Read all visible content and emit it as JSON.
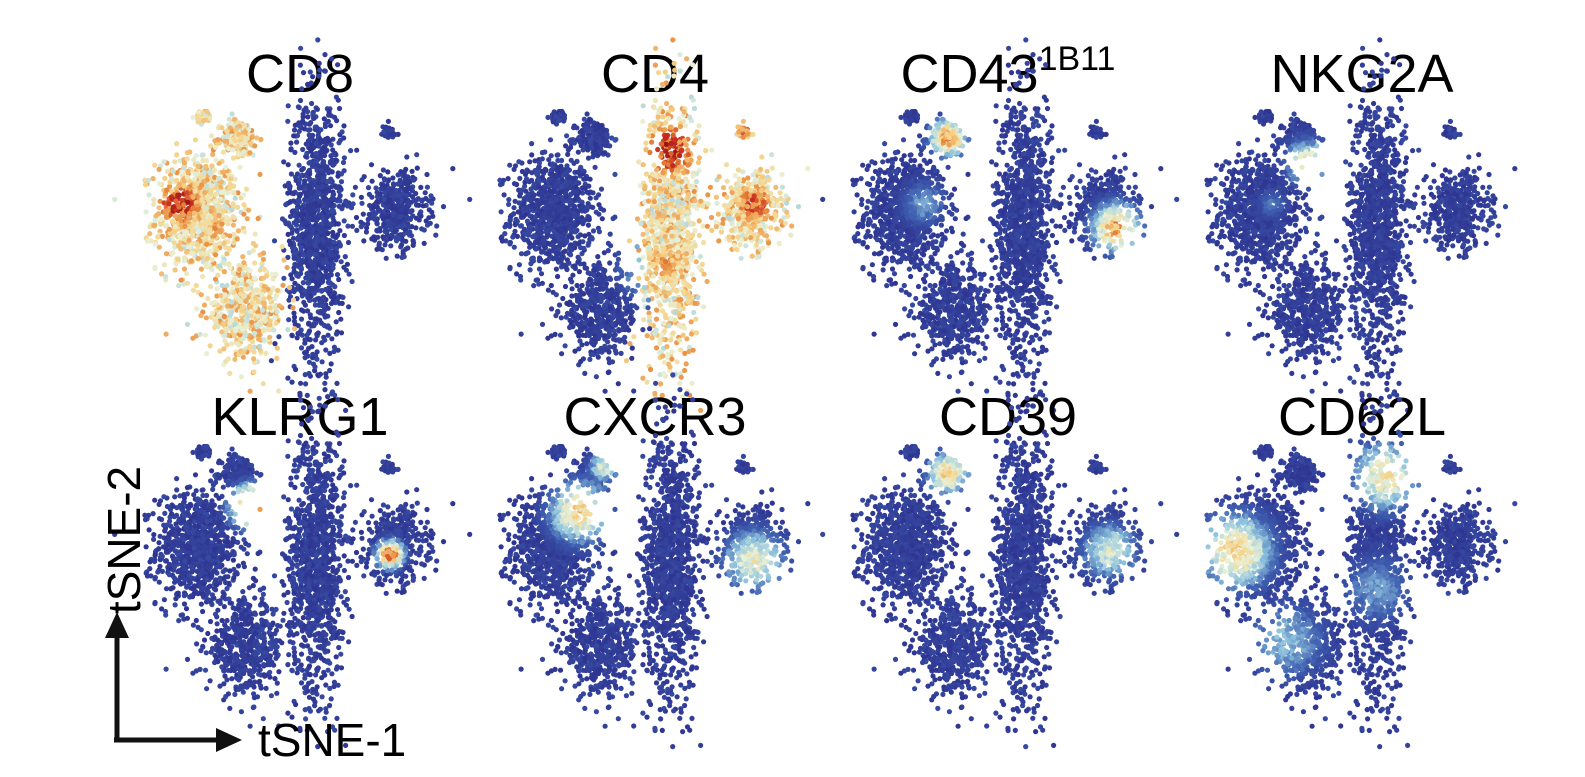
{
  "chart_data": {
    "type": "scatter",
    "layout": "small-multiples",
    "xlabel": "tSNE-1",
    "ylabel": "tSNE-2",
    "colormap": [
      "#2b2d8c",
      "#3f5fb0",
      "#8ec3dd",
      "#e8f1d8",
      "#f5d38a",
      "#e8883c",
      "#c72d20",
      "#9a1414"
    ],
    "background_color": "#2b2d8c",
    "clusters": [
      {
        "id": "cd8",
        "center": [
          -3.4,
          0.9
        ],
        "spread": [
          1.25,
          1.75
        ]
      },
      {
        "id": "cd8-top",
        "center": [
          -2.0,
          3.4
        ],
        "spread": [
          0.55,
          0.55
        ]
      },
      {
        "id": "cd8-small",
        "center": [
          -3.2,
          4.1
        ],
        "spread": [
          0.25,
          0.2
        ]
      },
      {
        "id": "cd4-main",
        "center": [
          0.55,
          0.5
        ],
        "spread": [
          0.85,
          3.9
        ]
      },
      {
        "id": "cd4-right",
        "center": [
          3.2,
          1.0
        ],
        "spread": [
          0.95,
          1.15
        ]
      },
      {
        "id": "cd4-small",
        "center": [
          2.9,
          3.6
        ],
        "spread": [
          0.3,
          0.25
        ]
      },
      {
        "id": "cd8-lower",
        "center": [
          -1.8,
          -2.4
        ],
        "spread": [
          1.2,
          1.4
        ]
      }
    ],
    "panels": [
      {
        "title": "CD8",
        "title_sup": "",
        "high": [
          {
            "x": -4.0,
            "y": 1.2,
            "r": 1.1,
            "v": 0.95
          },
          {
            "x": -2.6,
            "y": 0.3,
            "r": 1.0,
            "v": 0.7
          },
          {
            "x": -2.0,
            "y": 3.3,
            "r": 0.6,
            "v": 0.6
          },
          {
            "x": -3.0,
            "y": -2.6,
            "r": 0.9,
            "v": 0.5
          },
          {
            "x": -1.4,
            "y": -1.6,
            "r": 0.7,
            "v": 0.55
          }
        ],
        "high_clusters": [
          "cd8",
          "cd8-top",
          "cd8-small",
          "cd8-lower"
        ]
      },
      {
        "title": "CD4",
        "title_sup": "",
        "high": [
          {
            "x": 0.5,
            "y": 3.0,
            "r": 1.3,
            "v": 0.95
          },
          {
            "x": 0.4,
            "y": -0.8,
            "r": 1.2,
            "v": 0.7
          },
          {
            "x": 3.3,
            "y": 1.2,
            "r": 1.0,
            "v": 0.85
          },
          {
            "x": 3.0,
            "y": 3.6,
            "r": 0.4,
            "v": 0.8
          }
        ],
        "high_clusters": [
          "cd4-main",
          "cd4-right",
          "cd4-small"
        ]
      },
      {
        "title": "CD43",
        "title_sup": "1B11",
        "high": [
          {
            "x": -2.0,
            "y": 3.4,
            "r": 0.6,
            "v": 0.75
          },
          {
            "x": 3.6,
            "y": 0.4,
            "r": 0.8,
            "v": 0.7
          },
          {
            "x": -2.8,
            "y": 1.2,
            "r": 0.8,
            "v": 0.25
          }
        ],
        "high_clusters": []
      },
      {
        "title": "NKG2A",
        "title_sup": "",
        "high": [
          {
            "x": -1.8,
            "y": 2.6,
            "r": 0.7,
            "v": 0.55
          },
          {
            "x": -3.0,
            "y": 1.2,
            "r": 0.5,
            "v": 0.2
          }
        ],
        "high_clusters": []
      },
      {
        "title": "KLRG1",
        "title_sup": "",
        "high": [
          {
            "x": -1.6,
            "y": 2.3,
            "r": 0.7,
            "v": 0.85
          },
          {
            "x": 3.0,
            "y": 0.7,
            "r": 0.45,
            "v": 0.85
          }
        ],
        "high_clusters": []
      },
      {
        "title": "CXCR3",
        "title_sup": "",
        "high": [
          {
            "x": -2.5,
            "y": 2.1,
            "r": 1.0,
            "v": 0.6
          },
          {
            "x": 3.3,
            "y": 0.5,
            "r": 1.0,
            "v": 0.5
          },
          {
            "x": -1.7,
            "y": 3.6,
            "r": 0.5,
            "v": 0.45
          }
        ],
        "high_clusters": []
      },
      {
        "title": "CD39",
        "title_sup": "",
        "high": [
          {
            "x": -2.0,
            "y": 3.4,
            "r": 0.7,
            "v": 0.6
          },
          {
            "x": 3.4,
            "y": 0.8,
            "r": 0.9,
            "v": 0.45
          }
        ],
        "high_clusters": []
      },
      {
        "title": "CD62L",
        "title_sup": "",
        "high": [
          {
            "x": -4.2,
            "y": 0.8,
            "r": 1.2,
            "v": 0.6
          },
          {
            "x": 0.8,
            "y": 3.3,
            "r": 1.1,
            "v": 0.55
          },
          {
            "x": -2.5,
            "y": -2.2,
            "r": 1.3,
            "v": 0.3
          },
          {
            "x": 0.5,
            "y": -0.5,
            "r": 1.2,
            "v": 0.25
          }
        ],
        "high_clusters": []
      }
    ]
  }
}
